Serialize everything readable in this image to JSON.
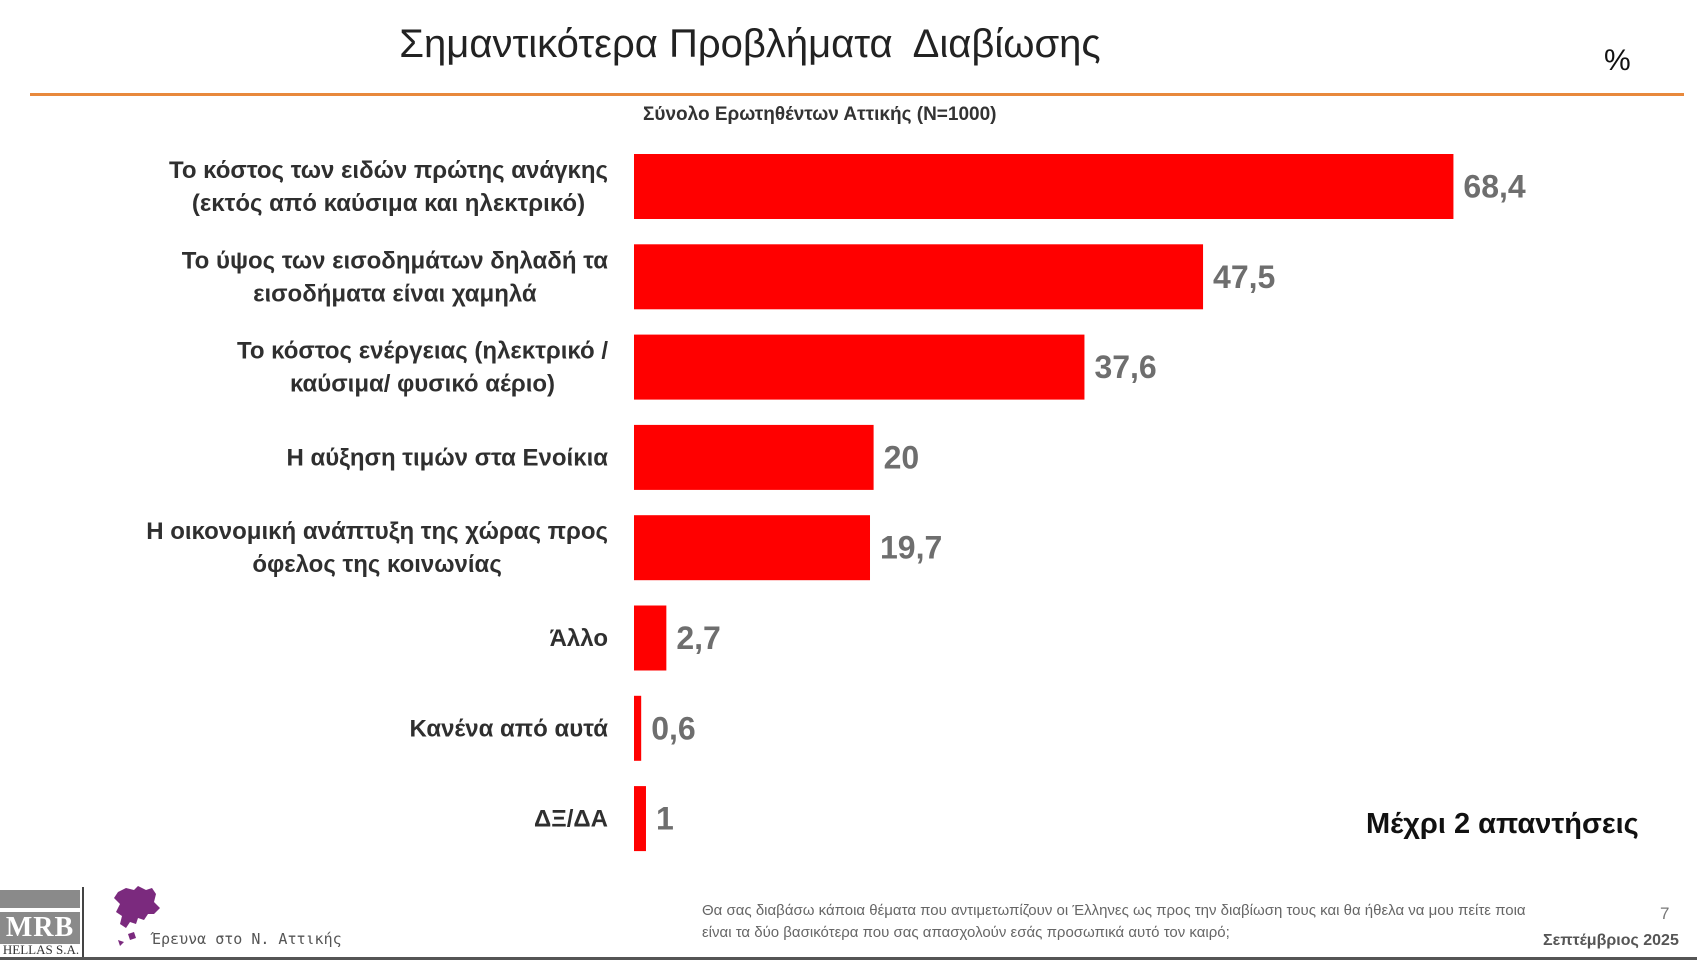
{
  "header": {
    "title": "Σημαντικότερα Προβλήματα  Διαβίωσης",
    "unit": "%"
  },
  "chart_data": {
    "type": "bar",
    "orientation": "horizontal",
    "subtitle": "Σύνολο Ερωτηθέντων Αττικής (Ν=1000)",
    "categories": [
      [
        "Το κόστος των ειδών πρώτης ανάγκης",
        "(εκτός από καύσιμα και ηλεκτρικό)"
      ],
      [
        "Το ύψος των εισοδημάτων δηλαδή τα",
        "εισοδήματα είναι χαμηλά"
      ],
      [
        "Το κόστος ενέργειας (ηλεκτρικό /",
        "καύσιμα/ φυσικό αέριο)"
      ],
      [
        "Η αύξηση τιμών στα Ενοίκια"
      ],
      [
        "Η οικονομική ανάπτυξη της χώρας προς",
        "όφελος της κοινωνίας"
      ],
      [
        "Άλλο"
      ],
      [
        "Κανένα από αυτά"
      ],
      [
        "ΔΞ/ΔΑ"
      ]
    ],
    "values": [
      68.4,
      47.5,
      37.6,
      20,
      19.7,
      2.7,
      0.6,
      1
    ],
    "value_labels": [
      "68,4",
      "47,5",
      "37,6",
      "20",
      "19,7",
      "2,7",
      "0,6",
      "1"
    ],
    "bar_color": "#ff0000",
    "xlim": [
      0,
      100
    ],
    "grid": false,
    "legend": "none"
  },
  "note": "Μέχρι 2 απαντήσεις",
  "footer": {
    "logo_text": "MRB",
    "logo_subtext": "HELLAS S.A.",
    "survey_label": "Έρευνα στο Ν. Αττικής",
    "question": "Θα σας διαβάσω κάποια θέματα που αντιμετωπίζουν οι Έλληνες ως προς την διαβίωση τους και θα ήθελα να μου πείτε ποια είναι τα δύο βασικότερα που σας απασχολούν εσάς προσωπικά αυτό τον καιρό;",
    "page_number": "7",
    "date": "Σεπτέμβριος 2025",
    "accent_color": "#e8893c",
    "map_color": "#7b2a7e"
  }
}
